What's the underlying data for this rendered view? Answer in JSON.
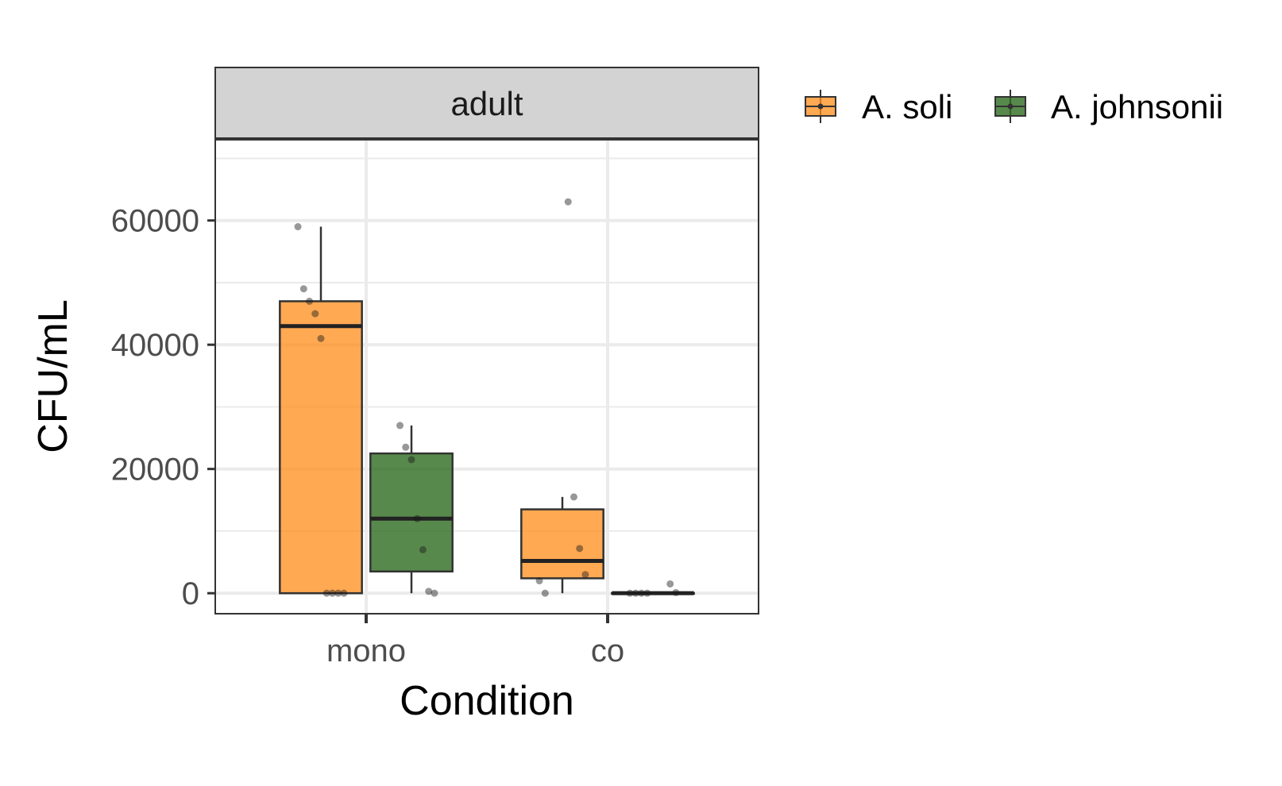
{
  "chart_data": {
    "type": "boxplot",
    "facet_label": "adult",
    "xlabel": "Condition",
    "ylabel": "CFU/mL",
    "categories": [
      "mono",
      "co"
    ],
    "ylim": [
      -3300,
      73000
    ],
    "y_ticks": [
      0,
      20000,
      40000,
      60000
    ],
    "y_tick_labels": [
      "0",
      "20000",
      "40000",
      "60000"
    ],
    "grid": true,
    "legend_position": "right",
    "series": [
      {
        "name": "A. soli",
        "color": "#FF8C1A",
        "boxes": [
          {
            "category": "mono",
            "whisker_low": 0,
            "q1": 0,
            "median": 43000,
            "q3": 47000,
            "whisker_high": 59000,
            "points": [
              59000,
              49000,
              47000,
              45000,
              41000,
              0,
              0,
              0,
              0
            ]
          },
          {
            "category": "co",
            "whisker_low": 0,
            "q1": 2400,
            "median": 5200,
            "q3": 13500,
            "whisker_high": 15500,
            "points": [
              63000,
              15500,
              7200,
              3000,
              2000,
              0
            ]
          }
        ]
      },
      {
        "name": "A. johnsonii",
        "color": "#2E6B1F",
        "boxes": [
          {
            "category": "mono",
            "whisker_low": 0,
            "q1": 3500,
            "median": 12000,
            "q3": 22500,
            "whisker_high": 27000,
            "points": [
              27000,
              23500,
              21500,
              12000,
              7000,
              300,
              0
            ]
          },
          {
            "category": "co",
            "whisker_low": 0,
            "q1": 0,
            "median": 0,
            "q3": 0,
            "whisker_high": 0,
            "points": [
              1500,
              100,
              0,
              0,
              0,
              0
            ]
          }
        ]
      }
    ]
  }
}
